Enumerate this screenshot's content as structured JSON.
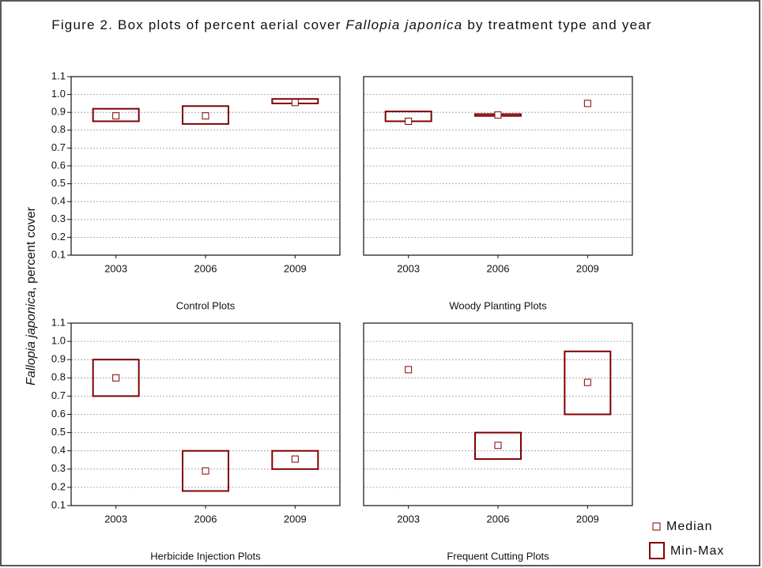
{
  "title": [
    "Figure 2. Box plots of percent aerial cover ",
    "Fallopia japonica",
    " by treatment type and year"
  ],
  "y_label": [
    "Fallopia japonica",
    ", percent cover"
  ],
  "legend": [
    "Median",
    "Min-Max"
  ],
  "color": "#800000",
  "chart_data": [
    {
      "type": "box",
      "xlabel": "Control Plots",
      "categories": [
        "2003",
        "2006",
        "2009"
      ],
      "median": [
        0.88,
        0.88,
        0.955
      ],
      "min": [
        0.85,
        0.835,
        0.95
      ],
      "max": [
        0.92,
        0.935,
        0.975
      ],
      "ylim": [
        0.1,
        1.1
      ],
      "yticks": [
        0.1,
        0.2,
        0.3,
        0.4,
        0.5,
        0.6,
        0.7,
        0.8,
        0.9,
        {
          "value": 1,
          "label": "1.0"
        },
        1.1
      ],
      "show_ytick_labels": true,
      "grid": true
    },
    {
      "type": "box",
      "xlabel": "Woody Planting Plots",
      "categories": [
        "2003",
        "2006",
        "2009"
      ],
      "median": [
        0.85,
        0.885,
        0.95
      ],
      "min": [
        0.85,
        0.88,
        0.95
      ],
      "max": [
        0.905,
        0.89,
        0.95
      ],
      "ylim": [
        0.1,
        1.1
      ],
      "yticks": [
        0.1,
        0.2,
        0.3,
        0.4,
        0.5,
        0.6,
        0.7,
        0.8,
        0.9,
        {
          "value": 1,
          "label": "1.0"
        },
        1.1
      ],
      "show_ytick_labels": false,
      "grid": true
    },
    {
      "type": "box",
      "xlabel": "Herbicide Injection Plots",
      "categories": [
        "2003",
        "2006",
        "2009"
      ],
      "median": [
        0.8,
        0.29,
        0.355
      ],
      "min": [
        0.7,
        0.18,
        0.3
      ],
      "max": [
        0.9,
        0.4,
        0.4
      ],
      "ylim": [
        0.1,
        1.1
      ],
      "yticks": [
        0.1,
        0.2,
        0.3,
        0.4,
        0.5,
        0.6,
        0.7,
        0.8,
        0.9,
        {
          "value": 1,
          "label": "1.0"
        },
        1.1
      ],
      "show_ytick_labels": true,
      "grid": true
    },
    {
      "type": "box",
      "xlabel": "Frequent Cutting Plots",
      "categories": [
        "2003",
        "2006",
        "2009"
      ],
      "median": [
        0.845,
        0.43,
        0.775
      ],
      "min": [
        0.845,
        0.355,
        0.6
      ],
      "max": [
        0.845,
        0.5,
        0.945
      ],
      "ylim": [
        0.1,
        1.1
      ],
      "yticks": [
        0.1,
        0.2,
        0.3,
        0.4,
        0.5,
        0.6,
        0.7,
        0.8,
        0.9,
        {
          "value": 1,
          "label": "1.0"
        },
        1.1
      ],
      "show_ytick_labels": false,
      "grid": true
    }
  ]
}
